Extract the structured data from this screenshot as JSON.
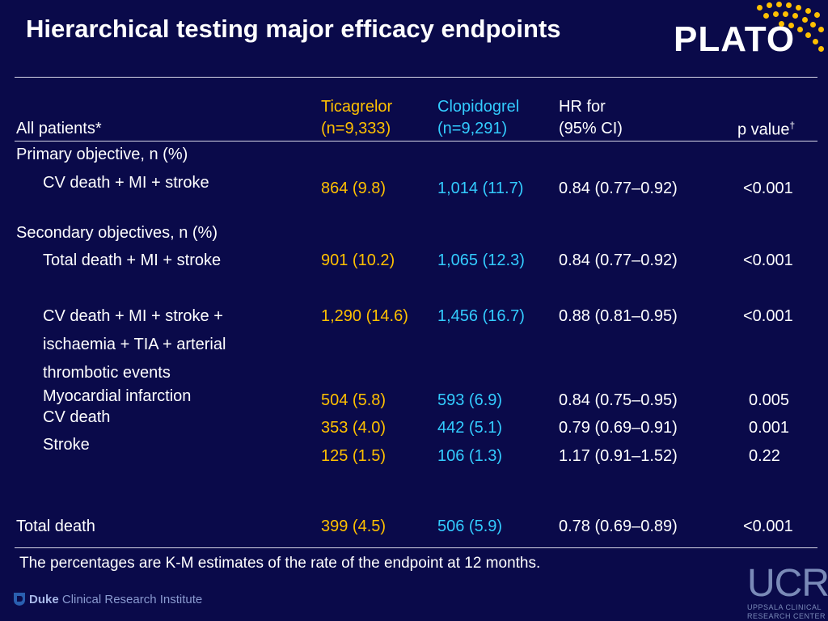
{
  "title": "Hierarchical testing major efficacy endpoints",
  "logo": {
    "text": "PLATO",
    "accent_color": "#ffc000"
  },
  "table": {
    "headers": {
      "endpoint": "All patients*",
      "ticagrelor_line1": "Ticagrelor",
      "ticagrelor_line2": "(n=9,333)",
      "clopidogrel_line1": "Clopidogrel",
      "clopidogrel_line2": "(n=9,291)",
      "hr_line1": "HR for",
      "hr_line2": " (95% CI)",
      "p_value": "p value",
      "p_value_mark": "†"
    },
    "sections": {
      "primary": "Primary objective, n (%)",
      "secondary": "Secondary objectives, n (%)"
    },
    "rows": [
      {
        "label": "CV death + MI + stroke",
        "ticagrelor": "864 (9.8)",
        "clopidogrel": "1,014 (11.7)",
        "hr": "0.84 (0.77–0.92)",
        "p": "<0.001"
      },
      {
        "label": "Total death + MI + stroke",
        "ticagrelor": "901 (10.2)",
        "clopidogrel": "1,065 (12.3)",
        "hr": "0.84 (0.77–0.92)",
        "p": "<0.001"
      },
      {
        "label_lines": [
          "CV death + MI + stroke +",
          "ischaemia + TIA + arterial",
          "thrombotic events"
        ],
        "ticagrelor": "1,290 (14.6)",
        "clopidogrel": "1,456 (16.7)",
        "hr": "0.88 (0.81–0.95)",
        "p": "<0.001"
      },
      {
        "label": "Myocardial infarction",
        "ticagrelor": "504 (5.8)",
        "clopidogrel": "593 (6.9)",
        "hr": "0.84 (0.75–0.95)",
        "p": "0.005"
      },
      {
        "label": "CV death",
        "ticagrelor": "353 (4.0)",
        "clopidogrel": "442 (5.1)",
        "hr": "0.79 (0.69–0.91)",
        "p": "0.001"
      },
      {
        "label": "Stroke",
        "ticagrelor": "125 (1.5)",
        "clopidogrel": "106 (1.3)",
        "hr": "1.17 (0.91–1.52)",
        "p": "0.22"
      },
      {
        "label": "Total death",
        "ticagrelor": "399 (4.5)",
        "clopidogrel": "506 (5.9)",
        "hr": "0.78 (0.69–0.89)",
        "p": "<0.001"
      }
    ]
  },
  "footnote": "The percentages are K-M estimates of the rate of the endpoint at 12 months.",
  "duke": {
    "brand": "Duke",
    "rest": " Clinical Research Institute"
  },
  "ucr": {
    "mark": "UCR",
    "line1": "UPPSALA CLINICAL",
    "line2": "RESEARCH CENTER"
  }
}
